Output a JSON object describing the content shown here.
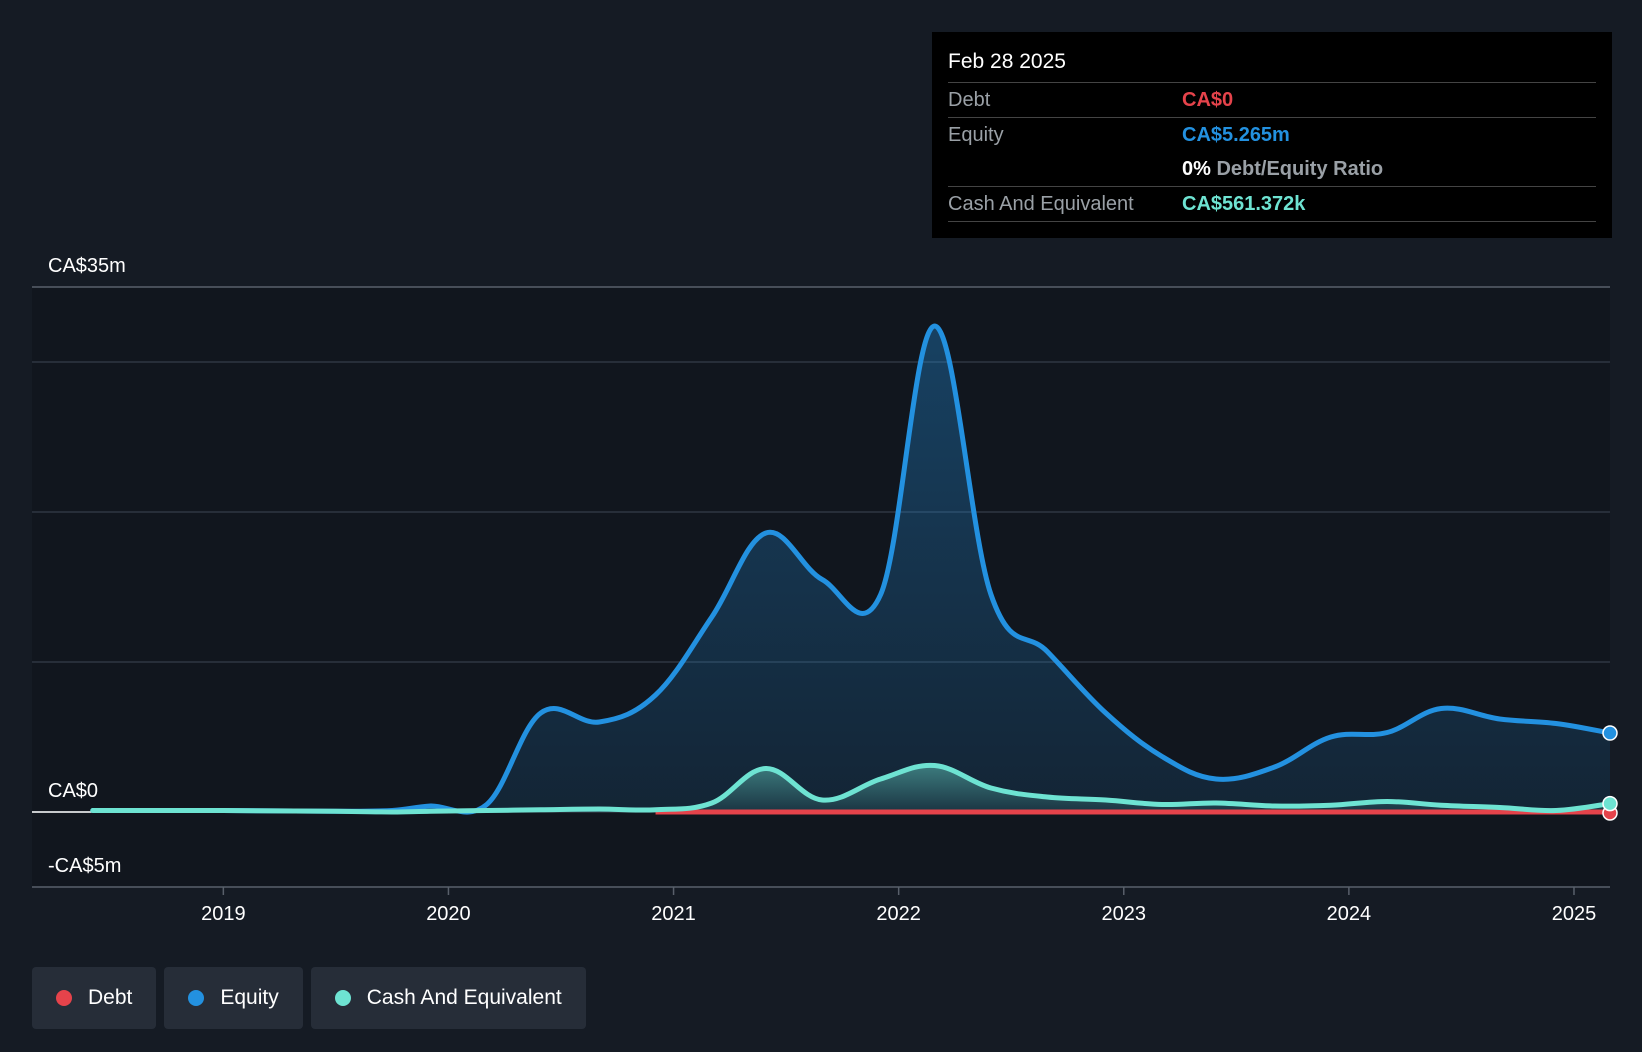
{
  "tooltip": {
    "date": "Feb 28 2025",
    "debt_label": "Debt",
    "debt_value": "CA$0",
    "equity_label": "Equity",
    "equity_value": "CA$5.265m",
    "ratio_value": "0%",
    "ratio_label": "Debt/Equity Ratio",
    "cash_label": "Cash And Equivalent",
    "cash_value": "CA$561.372k"
  },
  "legend": [
    {
      "label": "Debt",
      "color": "#e5434b"
    },
    {
      "label": "Equity",
      "color": "#2391e0"
    },
    {
      "label": "Cash And Equivalent",
      "color": "#6ee3d2"
    }
  ],
  "chart_data": {
    "type": "area",
    "title": "",
    "xlabel": "",
    "ylabel": "",
    "ylim": [
      -5,
      35
    ],
    "y_ticks": [
      {
        "value": 35,
        "label": "CA$35m"
      },
      {
        "value": 0,
        "label": "CA$0"
      },
      {
        "value": -5,
        "label": "-CA$5m"
      }
    ],
    "gridlines": [
      35,
      30,
      20,
      10,
      0
    ],
    "x_ticks": [
      {
        "value": 2019,
        "label": "2019"
      },
      {
        "value": 2020,
        "label": "2020"
      },
      {
        "value": 2021,
        "label": "2021"
      },
      {
        "value": 2022,
        "label": "2022"
      },
      {
        "value": 2023,
        "label": "2023"
      },
      {
        "value": 2024,
        "label": "2024"
      },
      {
        "value": 2025,
        "label": "2025"
      }
    ],
    "xlim": [
      2018.15,
      2025.16
    ],
    "series": [
      {
        "name": "Equity",
        "color": "#2391e0",
        "x": [
          2018.42,
          2019.0,
          2019.5,
          2019.75,
          2019.92,
          2020.17,
          2020.41,
          2020.67,
          2020.92,
          2021.17,
          2021.41,
          2021.66,
          2021.92,
          2022.16,
          2022.41,
          2022.66,
          2022.92,
          2023.17,
          2023.41,
          2023.67,
          2023.92,
          2024.17,
          2024.41,
          2024.67,
          2024.92,
          2025.16
        ],
        "values": [
          0.1,
          0.1,
          0.05,
          0.1,
          0.4,
          0.5,
          6.6,
          6.0,
          7.8,
          13.0,
          18.6,
          15.5,
          14.5,
          32.4,
          14.5,
          10.7,
          6.6,
          3.7,
          2.2,
          3.0,
          5.0,
          5.3,
          6.9,
          6.2,
          5.9,
          5.265
        ]
      },
      {
        "name": "Cash And Equivalent",
        "color": "#6ee3d2",
        "x": [
          2018.42,
          2019.0,
          2019.5,
          2019.75,
          2019.92,
          2020.17,
          2020.41,
          2020.67,
          2020.92,
          2021.17,
          2021.41,
          2021.66,
          2021.92,
          2022.16,
          2022.41,
          2022.66,
          2022.92,
          2023.17,
          2023.41,
          2023.67,
          2023.92,
          2024.17,
          2024.41,
          2024.67,
          2024.92,
          2025.16
        ],
        "values": [
          0.1,
          0.1,
          0.05,
          0.0,
          0.05,
          0.1,
          0.15,
          0.2,
          0.15,
          0.6,
          2.9,
          0.8,
          2.2,
          3.1,
          1.6,
          1.0,
          0.8,
          0.5,
          0.6,
          0.4,
          0.45,
          0.7,
          0.45,
          0.3,
          0.1,
          0.561
        ]
      },
      {
        "name": "Debt",
        "color": "#e5434b",
        "x": [
          2020.92,
          2025.16
        ],
        "values": [
          0.0,
          0.0
        ]
      }
    ]
  }
}
